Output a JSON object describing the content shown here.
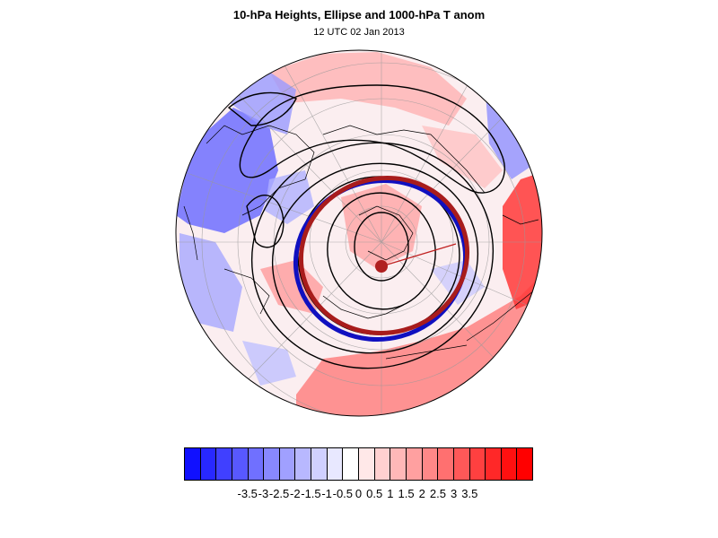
{
  "title": "10-hPa Heights, Ellipse and 1000-hPa T anom",
  "subtitle": "12 UTC 02 Jan 2013",
  "colorbar": {
    "colors": [
      "#1010ff",
      "#2828ff",
      "#4040ff",
      "#5858ff",
      "#7070ff",
      "#8888ff",
      "#a0a0ff",
      "#b8b8ff",
      "#d0d0ff",
      "#e8e8ff",
      "#ffffff",
      "#ffe8e8",
      "#ffd0d0",
      "#ffb8b8",
      "#ffa0a0",
      "#ff8888",
      "#ff7070",
      "#ff5858",
      "#ff4040",
      "#ff2828",
      "#ff1010",
      "#ff0000"
    ],
    "labels": [
      "-3.5",
      "-3",
      "-2.5",
      "-2",
      "-1.5",
      "-1",
      "-0.5",
      "0",
      "0.5",
      "1",
      "1.5",
      "2",
      "2.5",
      "3",
      "3.5"
    ]
  },
  "colors": {
    "ellipse_outer": "#a81c1c",
    "ellipse_inner": "#1010c0",
    "vortex_center": "#b02020",
    "contour": "#000000",
    "coast": "#000000",
    "grid": "#999999"
  }
}
